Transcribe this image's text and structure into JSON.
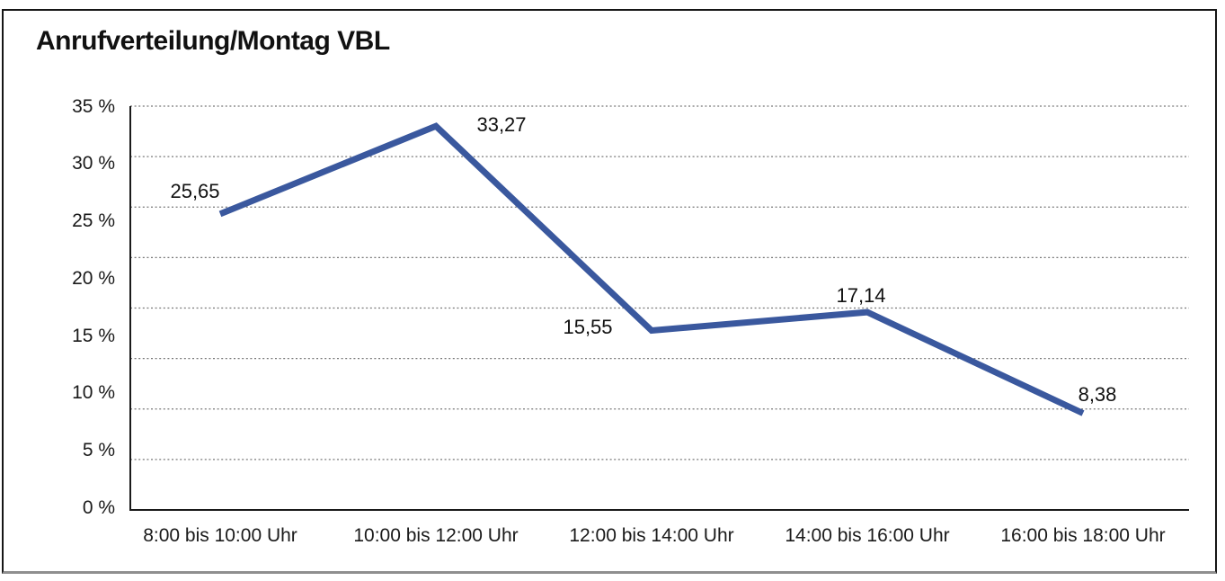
{
  "chart": {
    "title": "Anrufverteilung/Montag VBL",
    "y_tick_labels": [
      "35 %",
      "30 %",
      "25 %",
      "20 %",
      "15 %",
      "10 %",
      "5 %",
      "0 %"
    ],
    "x_tick_labels": [
      "8:00 bis 10:00 Uhr",
      "10:00 bis 12:00 Uhr",
      "12:00 bis 14:00 Uhr",
      "14:00 bis 16:00 Uhr",
      "16:00 bis 18:00 Uhr"
    ],
    "point_labels": [
      "25,65",
      "33,27",
      "15,55",
      "17,14",
      "8,38"
    ]
  },
  "chart_data": {
    "type": "line",
    "title": "Anrufverteilung/Montag VBL",
    "categories": [
      "8:00 bis 10:00 Uhr",
      "10:00 bis 12:00 Uhr",
      "12:00 bis 14:00 Uhr",
      "14:00 bis 16:00 Uhr",
      "16:00 bis 18:00 Uhr"
    ],
    "series": [
      {
        "name": "Anrufverteilung Montag VBL",
        "values": [
          25.65,
          33.27,
          15.55,
          17.14,
          8.38
        ]
      }
    ],
    "values_unit": "%",
    "xlabel": "",
    "ylabel": "",
    "ylim": [
      0,
      35
    ],
    "y_ticks": [
      0,
      5,
      10,
      15,
      20,
      25,
      30,
      35
    ],
    "grid": "horizontal dotted",
    "legend": "none",
    "colors": {
      "line": "#3A589E",
      "axis": "#1a1a1a",
      "gridline": "#787878",
      "text": "#111111",
      "frame_border": "#161616",
      "frame_bottom": "#8f8f8f"
    }
  }
}
